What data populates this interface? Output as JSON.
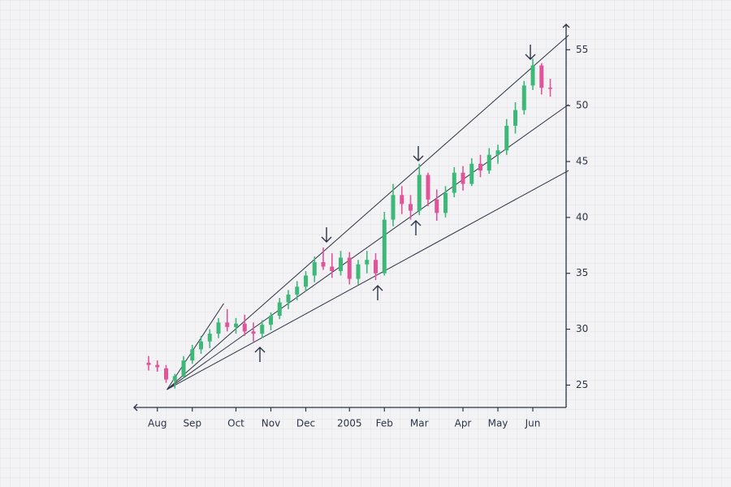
{
  "chart_data": {
    "type": "candlestick",
    "categories": [
      null,
      "Aug",
      null,
      null,
      null,
      "Sep",
      null,
      null,
      null,
      null,
      "Oct",
      null,
      null,
      null,
      "Nov",
      null,
      null,
      null,
      "Dec",
      null,
      null,
      null,
      null,
      "2005",
      null,
      null,
      null,
      "Feb",
      null,
      null,
      null,
      "Mar",
      null,
      null,
      null,
      null,
      "Apr",
      null,
      null,
      null,
      "May",
      null,
      null,
      null,
      "Jun",
      null,
      null
    ],
    "open": [
      27,
      26.8,
      26.5,
      25.4,
      25.8,
      27.2,
      28.2,
      28.9,
      29.6,
      30.6,
      30.2,
      30.5,
      29.8,
      29.6,
      30.4,
      31.2,
      32.4,
      33.1,
      33.8,
      34.8,
      36.0,
      35.6,
      35.2,
      36.4,
      34.5,
      35.8,
      36.2,
      35.0,
      39.8,
      42.0,
      41.2,
      40.6,
      43.8,
      41.6,
      40.4,
      42.2,
      44.0,
      43.0,
      44.8,
      44.2,
      45.6,
      46.0,
      48.2,
      49.6,
      51.8,
      53.6,
      51.6
    ],
    "high": [
      27.6,
      27.2,
      26.8,
      26.0,
      27.6,
      28.6,
      29.4,
      30.0,
      31.0,
      31.8,
      31.0,
      31.3,
      30.6,
      30.8,
      31.5,
      32.8,
      33.5,
      34.3,
      35.2,
      36.5,
      37.3,
      36.8,
      37.0,
      36.9,
      36.2,
      37.0,
      36.8,
      40.5,
      43.0,
      42.8,
      42.0,
      44.8,
      44.0,
      42.5,
      42.8,
      44.5,
      44.6,
      45.3,
      45.6,
      46.2,
      46.5,
      48.8,
      50.3,
      52.2,
      54.2,
      53.8,
      52.4
    ],
    "low": [
      26.3,
      26.2,
      25.2,
      24.7,
      25.6,
      26.9,
      27.8,
      28.3,
      29.2,
      29.8,
      29.6,
      29.4,
      28.9,
      29.2,
      29.9,
      30.9,
      31.8,
      32.6,
      33.4,
      34.2,
      35.3,
      34.6,
      34.8,
      34.0,
      34.0,
      35.0,
      34.4,
      34.8,
      39.2,
      40.3,
      39.8,
      40.2,
      41.0,
      39.7,
      40.0,
      41.8,
      42.4,
      42.8,
      43.6,
      43.9,
      44.8,
      45.6,
      47.5,
      49.2,
      51.4,
      51.0,
      50.8
    ],
    "close": [
      26.8,
      26.6,
      25.5,
      25.8,
      27.2,
      28.2,
      28.9,
      29.6,
      30.6,
      30.2,
      30.5,
      29.8,
      29.6,
      30.4,
      31.2,
      32.4,
      33.1,
      33.8,
      34.8,
      36.0,
      35.6,
      35.2,
      36.4,
      34.5,
      35.8,
      36.2,
      35.0,
      39.8,
      42.0,
      41.2,
      40.6,
      43.8,
      41.6,
      40.4,
      42.2,
      44.0,
      43.0,
      44.8,
      44.2,
      45.6,
      46.0,
      48.2,
      49.6,
      51.8,
      53.6,
      51.6,
      51.5
    ],
    "up_color": "#3cb878",
    "down_color": "#e0559a",
    "ylim": [
      23,
      57.3
    ],
    "yticks": [
      25,
      30,
      35,
      40,
      45,
      50,
      55
    ],
    "fan_lines": [
      {
        "start": [
          2.1,
          24.6
        ],
        "end": [
          8.6,
          32.3
        ]
      },
      {
        "start": [
          2.1,
          24.6
        ],
        "end": [
          48.1,
          56.3
        ]
      },
      {
        "start": [
          2.1,
          24.6
        ],
        "end": [
          48.1,
          50.1
        ]
      },
      {
        "start": [
          2.1,
          24.6
        ],
        "end": [
          48.1,
          44.2
        ]
      }
    ]
  }
}
